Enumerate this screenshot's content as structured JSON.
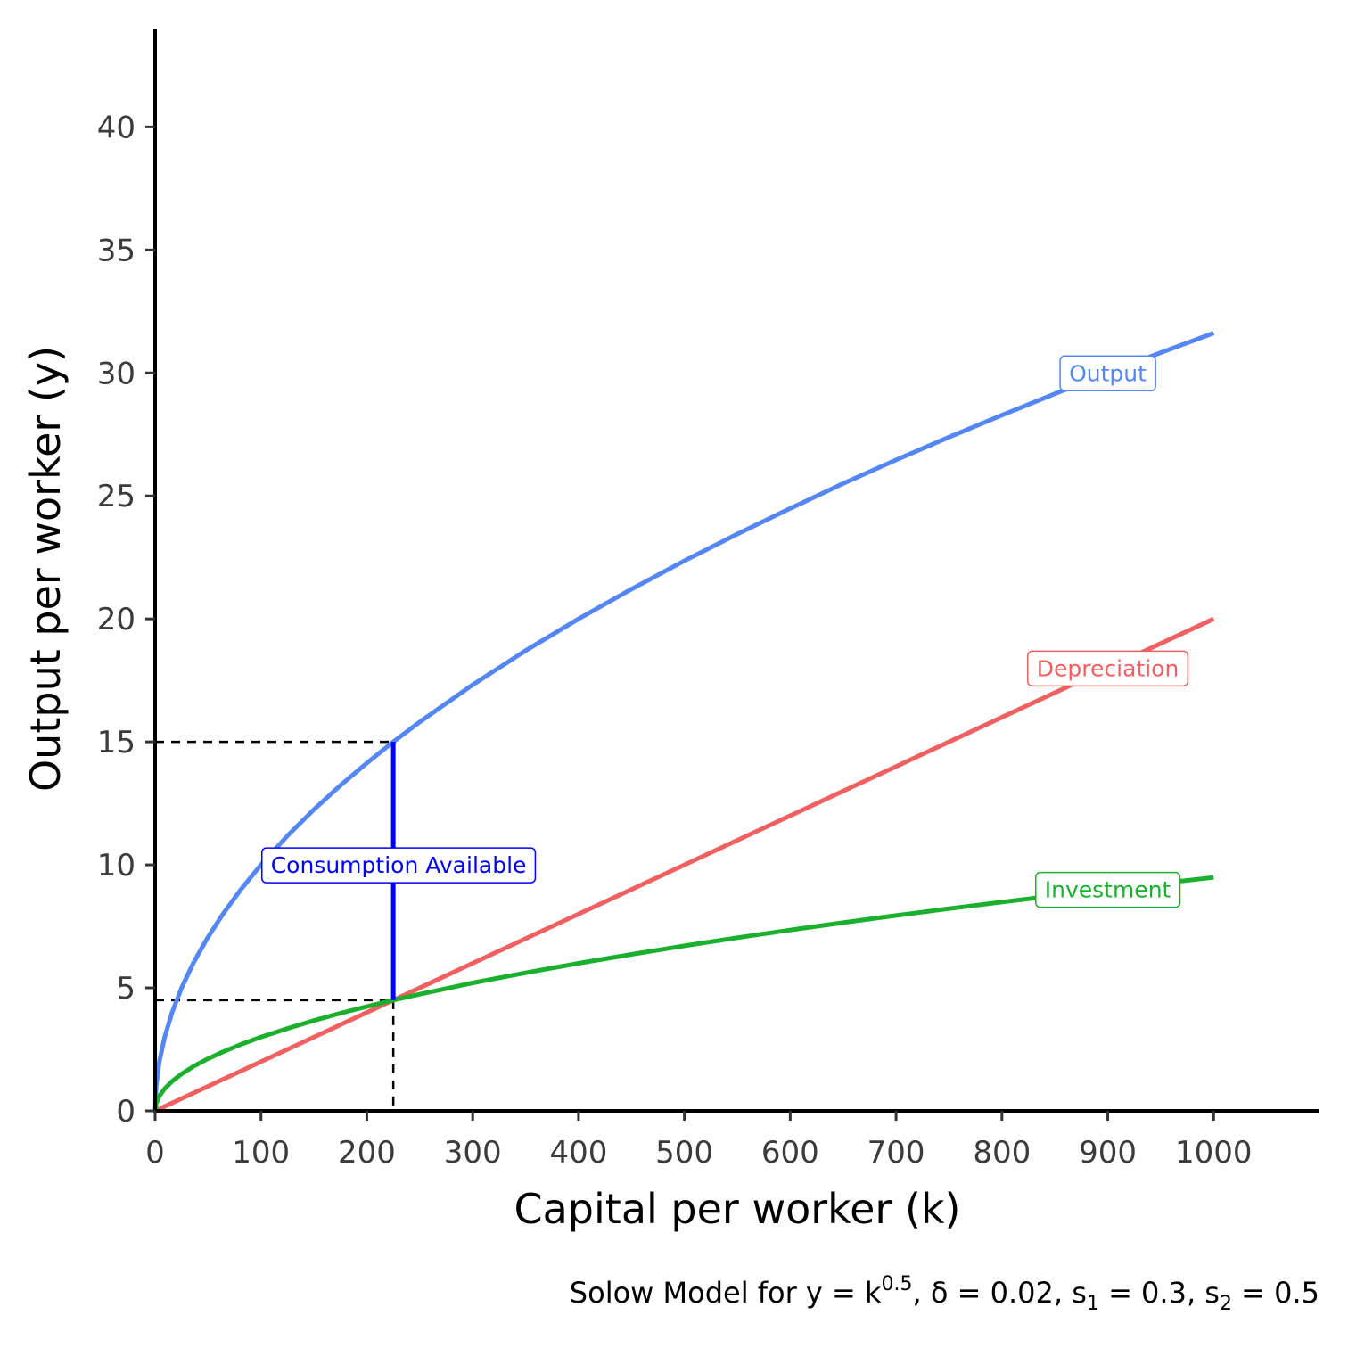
{
  "chart_data": {
    "type": "line",
    "x_label": "Capital per worker (k)",
    "y_label": "Output per worker (y)",
    "xlim": [
      0,
      1100
    ],
    "ylim": [
      0,
      44
    ],
    "x_ticks": [
      0,
      100,
      200,
      300,
      400,
      500,
      600,
      700,
      800,
      900,
      1000
    ],
    "y_ticks": [
      0,
      5,
      10,
      15,
      20,
      25,
      30,
      35,
      40
    ],
    "x_tick_labels": [
      "0",
      "100",
      "200",
      "300",
      "400",
      "500",
      "600",
      "700",
      "800",
      "900",
      "1000"
    ],
    "y_tick_labels": [
      "0",
      "5",
      "10",
      "15",
      "20",
      "25",
      "30",
      "35",
      "40"
    ],
    "grid": false,
    "legend": "none",
    "series": [
      {
        "name": "Output",
        "color": "#5586f5",
        "x": [
          0,
          1,
          4,
          9,
          16,
          25,
          36,
          49,
          64,
          81,
          100,
          125,
          150,
          175,
          200,
          225,
          250,
          300,
          350,
          400,
          450,
          500,
          550,
          600,
          650,
          700,
          750,
          800,
          850,
          900,
          950,
          1000
        ],
        "y": [
          0,
          1,
          2,
          3,
          4,
          5,
          6,
          7,
          8,
          9,
          10,
          11.18,
          12.25,
          13.23,
          14.14,
          15,
          15.81,
          17.32,
          18.71,
          20,
          21.21,
          22.36,
          23.45,
          24.49,
          25.5,
          26.46,
          27.39,
          28.28,
          29.15,
          30,
          30.82,
          31.62
        ]
      },
      {
        "name": "Depreciation",
        "color": "#f06060",
        "x": [
          0,
          1000
        ],
        "y": [
          0,
          20
        ]
      },
      {
        "name": "Investment",
        "color": "#1aaf2c",
        "x": [
          0,
          1,
          4,
          9,
          16,
          25,
          36,
          49,
          64,
          81,
          100,
          125,
          150,
          175,
          200,
          225,
          250,
          300,
          350,
          400,
          450,
          500,
          550,
          600,
          650,
          700,
          750,
          800,
          850,
          900,
          950,
          1000
        ],
        "y": [
          0,
          0.3,
          0.6,
          0.9,
          1.2,
          1.5,
          1.8,
          2.1,
          2.4,
          2.7,
          3,
          3.35,
          3.67,
          3.97,
          4.24,
          4.5,
          4.74,
          5.2,
          5.61,
          6,
          6.36,
          6.71,
          7.04,
          7.35,
          7.65,
          7.94,
          8.22,
          8.49,
          8.75,
          9,
          9.25,
          9.49
        ]
      }
    ],
    "series_labels": [
      {
        "text": "Output",
        "x": 900,
        "y": 30,
        "color": "#5586f5"
      },
      {
        "text": "Depreciation",
        "x": 900,
        "y": 18,
        "color": "#f06060"
      },
      {
        "text": "Investment",
        "x": 900,
        "y": 9,
        "color": "#1aaf2c"
      }
    ],
    "annotations": {
      "steady_state_k": 225,
      "steady_state_y": 15,
      "steady_state_i": 4.5,
      "consumption_color": "#0000ff",
      "consumption_label": {
        "text": "Consumption Available",
        "x": 230,
        "y": 10
      }
    },
    "caption": {
      "prefix": "Solow Model for y = k",
      "exponent": "0.5",
      "delta_part": ", δ = 0.02, s",
      "s1_sub": "1",
      "s1_value": " = 0.3, s",
      "s2_sub": "2",
      "s2_value": " = 0.5"
    }
  }
}
